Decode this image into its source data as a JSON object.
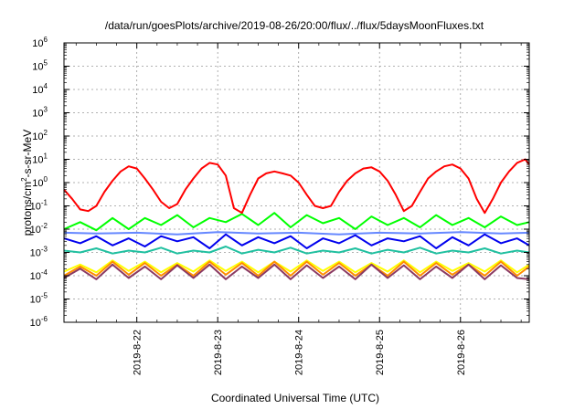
{
  "chart_data": {
    "type": "line",
    "title": "/data/run/goesPlots/archive/2019-08-26/20:00/flux/../flux/5daysMoonFluxes.txt",
    "xlabel": "Coordinated Universal Time (UTC)",
    "ylabel": {
      "base": "protons/cm",
      "exp": "2",
      "rest": "-s-sr-MeV"
    },
    "y_scale": "log",
    "ylim": [
      1e-06,
      1000000.0
    ],
    "xlim_days": [
      21.1,
      26.85
    ],
    "grid": true,
    "x_ticks": [
      {
        "v": 22,
        "label": "2019-8-22"
      },
      {
        "v": 23,
        "label": "2019-8-23"
      },
      {
        "v": 24,
        "label": "2019-8-24"
      },
      {
        "v": 25,
        "label": "2019-8-25"
      },
      {
        "v": 26,
        "label": "2019-8-26"
      }
    ],
    "y_ticks": [
      {
        "e": -6,
        "base": "10",
        "exp": "-6"
      },
      {
        "e": -5,
        "base": "10",
        "exp": "-5"
      },
      {
        "e": -4,
        "base": "10",
        "exp": "-4"
      },
      {
        "e": -3,
        "base": "10",
        "exp": "-3"
      },
      {
        "e": -2,
        "base": "10",
        "exp": "-2"
      },
      {
        "e": -1,
        "base": "10",
        "exp": "-1"
      },
      {
        "e": 0,
        "base": "10",
        "exp": "0"
      },
      {
        "e": 1,
        "base": "10",
        "exp": "1"
      },
      {
        "e": 2,
        "base": "10",
        "exp": "2"
      },
      {
        "e": 3,
        "base": "10",
        "exp": "3"
      },
      {
        "e": 4,
        "base": "10",
        "exp": "4"
      },
      {
        "e": 5,
        "base": "10",
        "exp": "5"
      },
      {
        "e": 6,
        "base": "10",
        "exp": "6"
      }
    ],
    "series": [
      {
        "color": "#ff0000",
        "x": [
          21.1,
          21.2,
          21.3,
          21.4,
          21.5,
          21.6,
          21.7,
          21.8,
          21.9,
          22.0,
          22.1,
          22.2,
          22.3,
          22.4,
          22.5,
          22.6,
          22.7,
          22.8,
          22.9,
          23.0,
          23.1,
          23.2,
          23.3,
          23.4,
          23.5,
          23.6,
          23.7,
          23.8,
          23.9,
          24.0,
          24.1,
          24.2,
          24.3,
          24.4,
          24.5,
          24.6,
          24.7,
          24.8,
          24.9,
          25.0,
          25.1,
          25.2,
          25.3,
          25.4,
          25.5,
          25.6,
          25.7,
          25.8,
          25.9,
          26.0,
          26.1,
          26.2,
          26.3,
          26.4,
          26.5,
          26.6,
          26.7,
          26.8,
          26.85
        ],
        "y": [
          0.5,
          0.2,
          0.07,
          0.06,
          0.1,
          0.4,
          1.2,
          3,
          5,
          4,
          1.5,
          0.5,
          0.15,
          0.08,
          0.12,
          0.5,
          1.5,
          4,
          7,
          6,
          2,
          0.08,
          0.05,
          0.3,
          1.5,
          2.5,
          3,
          2.5,
          2,
          1,
          0.3,
          0.1,
          0.08,
          0.1,
          0.4,
          1.2,
          2.5,
          4,
          4.5,
          3,
          1.2,
          0.3,
          0.06,
          0.1,
          0.4,
          1.5,
          3,
          5,
          6,
          4,
          1.5,
          0.2,
          0.05,
          0.2,
          1,
          3,
          7,
          10,
          6
        ]
      },
      {
        "color": "#00ff00",
        "x": [
          21.1,
          21.3,
          21.5,
          21.7,
          21.9,
          22.1,
          22.3,
          22.5,
          22.7,
          22.9,
          23.1,
          23.3,
          23.5,
          23.7,
          23.9,
          24.1,
          24.3,
          24.5,
          24.7,
          24.9,
          25.1,
          25.3,
          25.5,
          25.7,
          25.9,
          26.1,
          26.3,
          26.5,
          26.7,
          26.85
        ],
        "y": [
          0.01,
          0.02,
          0.009,
          0.03,
          0.01,
          0.03,
          0.015,
          0.04,
          0.012,
          0.03,
          0.02,
          0.045,
          0.015,
          0.05,
          0.012,
          0.04,
          0.018,
          0.03,
          0.01,
          0.035,
          0.015,
          0.03,
          0.012,
          0.04,
          0.015,
          0.03,
          0.012,
          0.035,
          0.015,
          0.02
        ]
      },
      {
        "color": "#0000ee",
        "x": [
          21.1,
          21.3,
          21.5,
          21.7,
          21.9,
          22.1,
          22.3,
          22.5,
          22.7,
          22.9,
          23.1,
          23.3,
          23.5,
          23.7,
          23.9,
          24.1,
          24.3,
          24.5,
          24.7,
          24.9,
          25.1,
          25.3,
          25.5,
          25.7,
          25.9,
          26.1,
          26.3,
          26.5,
          26.7,
          26.85
        ],
        "y": [
          0.004,
          0.0025,
          0.005,
          0.002,
          0.004,
          0.0018,
          0.005,
          0.003,
          0.0045,
          0.0015,
          0.006,
          0.002,
          0.0045,
          0.0025,
          0.005,
          0.0015,
          0.004,
          0.0025,
          0.0055,
          0.002,
          0.004,
          0.003,
          0.005,
          0.0015,
          0.0045,
          0.002,
          0.006,
          0.0025,
          0.004,
          0.002
        ]
      },
      {
        "color": "#6688ff",
        "x": [
          21.1,
          21.5,
          22.0,
          22.5,
          23.0,
          23.5,
          24.0,
          24.5,
          25.0,
          25.5,
          26.0,
          26.5,
          26.85
        ],
        "y": [
          0.007,
          0.0065,
          0.007,
          0.006,
          0.0075,
          0.0065,
          0.007,
          0.006,
          0.007,
          0.0065,
          0.0075,
          0.0065,
          0.007
        ]
      },
      {
        "color": "#20c0a0",
        "x": [
          21.1,
          21.3,
          21.5,
          21.7,
          21.9,
          22.1,
          22.3,
          22.5,
          22.7,
          22.9,
          23.1,
          23.3,
          23.5,
          23.7,
          23.9,
          24.1,
          24.3,
          24.5,
          24.7,
          24.9,
          25.1,
          25.3,
          25.5,
          25.7,
          25.9,
          26.1,
          26.3,
          26.5,
          26.7,
          26.85
        ],
        "y": [
          0.0012,
          0.001,
          0.0015,
          0.0009,
          0.0012,
          0.001,
          0.0016,
          0.0009,
          0.0012,
          0.001,
          0.0018,
          0.0009,
          0.0013,
          0.001,
          0.0016,
          0.0009,
          0.0012,
          0.001,
          0.0015,
          0.0009,
          0.0013,
          0.001,
          0.0016,
          0.0009,
          0.0012,
          0.001,
          0.0015,
          0.0009,
          0.0012,
          0.001
        ]
      },
      {
        "color": "#ffff00",
        "x": [
          21.1,
          21.3,
          21.5,
          21.7,
          21.9,
          22.1,
          22.3,
          22.5,
          22.7,
          22.9,
          23.1,
          23.3,
          23.5,
          23.7,
          23.9,
          24.1,
          24.3,
          24.5,
          24.7,
          24.9,
          25.1,
          25.3,
          25.5,
          25.7,
          25.9,
          26.1,
          26.3,
          26.5,
          26.7,
          26.85
        ],
        "y": [
          0.00015,
          0.0003,
          0.00014,
          0.00045,
          0.00016,
          0.0004,
          0.00014,
          0.00035,
          0.00015,
          0.00045,
          0.00016,
          0.0004,
          0.00014,
          0.0004,
          0.00015,
          0.00045,
          0.00016,
          0.0004,
          0.00014,
          0.00035,
          0.00015,
          0.00045,
          0.00014,
          0.0004,
          0.00016,
          0.00035,
          0.00015,
          0.00045,
          0.00014,
          0.0003
        ]
      },
      {
        "color": "#ff8c00",
        "x": [
          21.1,
          21.3,
          21.5,
          21.7,
          21.9,
          22.1,
          22.3,
          22.5,
          22.7,
          22.9,
          23.1,
          23.3,
          23.5,
          23.7,
          23.9,
          24.1,
          24.3,
          24.5,
          24.7,
          24.9,
          25.1,
          25.3,
          25.5,
          25.7,
          25.9,
          26.1,
          26.3,
          26.5,
          26.7,
          26.85
        ],
        "y": [
          0.0001,
          0.00025,
          0.0001,
          0.0004,
          0.00011,
          0.00035,
          0.0001,
          0.0003,
          0.0001,
          0.0004,
          0.00011,
          0.00035,
          0.0001,
          0.0004,
          0.0001,
          0.0004,
          0.00011,
          0.00035,
          0.0001,
          0.0003,
          0.0001,
          0.0004,
          0.0001,
          0.00035,
          0.00011,
          0.0003,
          0.0001,
          0.0004,
          0.0001,
          0.00025
        ]
      },
      {
        "color": "#8b3a62",
        "x": [
          21.1,
          21.3,
          21.5,
          21.7,
          21.9,
          22.1,
          22.3,
          22.5,
          22.7,
          22.9,
          23.1,
          23.3,
          23.5,
          23.7,
          23.9,
          24.1,
          24.3,
          24.5,
          24.7,
          24.9,
          25.1,
          25.3,
          25.5,
          25.7,
          25.9,
          26.1,
          26.3,
          26.5,
          26.7,
          26.85
        ],
        "y": [
          8e-05,
          0.0002,
          7e-05,
          0.0003,
          8e-05,
          0.00025,
          7e-05,
          0.00028,
          8e-05,
          0.0003,
          7e-05,
          0.00025,
          8e-05,
          0.0003,
          7e-05,
          0.00028,
          8e-05,
          0.00025,
          7e-05,
          0.0003,
          8e-05,
          0.00028,
          7e-05,
          0.00025,
          8e-05,
          0.0003,
          7e-05,
          0.00028,
          8e-05,
          7e-05
        ]
      }
    ]
  }
}
